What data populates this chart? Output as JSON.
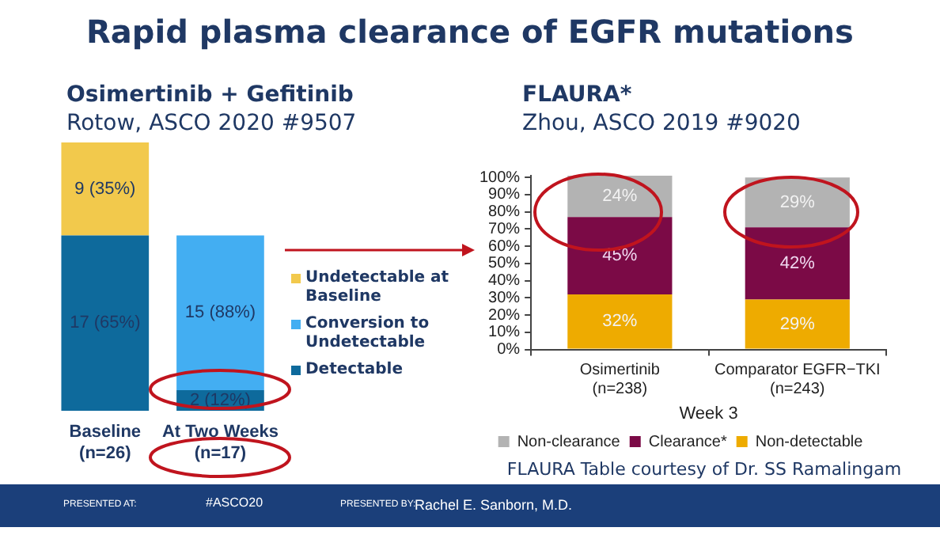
{
  "chart_data": [
    {
      "type": "bar",
      "title": "Osimertinib + Gefitinib",
      "subtitle": "Rotow, ASCO 2020 #9507",
      "categories": [
        "Baseline\n(n=26)",
        "At Two Weeks\n(n=17)"
      ],
      "stacked": true,
      "legend": "right",
      "tick_labels": "x",
      "ylim": [
        0,
        26
      ],
      "series": [
        {
          "name": "Detectable",
          "color": "#0e6a9c",
          "values": [
            17,
            2
          ],
          "value_labels": [
            "17 (65%)",
            "2 (12%)"
          ]
        },
        {
          "name": "Conversion to Undetectable",
          "color": "#43aef2",
          "values": [
            null,
            15
          ],
          "value_labels": [
            null,
            "15 (88%)"
          ]
        },
        {
          "name": "Undetectable at Baseline",
          "color": "#f2c94c",
          "values": [
            9,
            null
          ],
          "value_labels": [
            "9 (35%)",
            null
          ]
        }
      ]
    },
    {
      "type": "bar",
      "title": "FLAURA*",
      "subtitle": "Zhou, ASCO 2019 #9020",
      "categories": [
        "Osimertinib\n(n=238)",
        "Comparator EGFR−TKI\n(n=243)"
      ],
      "xlabel": "Week 3",
      "stacked": true,
      "legend": "bottom",
      "ylim": [
        0,
        101
      ],
      "yticks": [
        {
          "value": 0,
          "label": "0%"
        },
        {
          "value": 10,
          "label": "10%"
        },
        {
          "value": 20,
          "label": "20%"
        },
        {
          "value": 30,
          "label": "30%"
        },
        {
          "value": 40,
          "label": "40%"
        },
        {
          "value": 50,
          "label": "50%"
        },
        {
          "value": 60,
          "label": "60%"
        },
        {
          "value": 70,
          "label": "70%"
        },
        {
          "value": 80,
          "label": "80%"
        },
        {
          "value": 90,
          "label": "90%"
        },
        {
          "value": 100,
          "label": "100%"
        }
      ],
      "annotations": [
        "FLAURA Table courtesy of Dr. SS Ramalingam"
      ],
      "series": [
        {
          "name": "Non-detectable",
          "color": "#eeab00",
          "values": [
            32,
            29
          ],
          "value_labels": [
            "32%",
            "29%"
          ]
        },
        {
          "name": "Clearance*",
          "color": "#7b0a46",
          "values": [
            45,
            42
          ],
          "value_labels": [
            "45%",
            "42%"
          ]
        },
        {
          "name": "Non-clearance",
          "color": "#b3b3b3",
          "values": [
            24,
            29
          ],
          "value_labels": [
            "24%",
            "29%"
          ]
        }
      ]
    },
    {
      "type": "other",
      "title": "Rapid plasma clearance of EGFR mutations",
      "annotations": [
        "PRESENTED AT:",
        "#ASCO20",
        "PRESENTED BY:",
        "Rachel E. Sanborn, M.D."
      ]
    }
  ]
}
